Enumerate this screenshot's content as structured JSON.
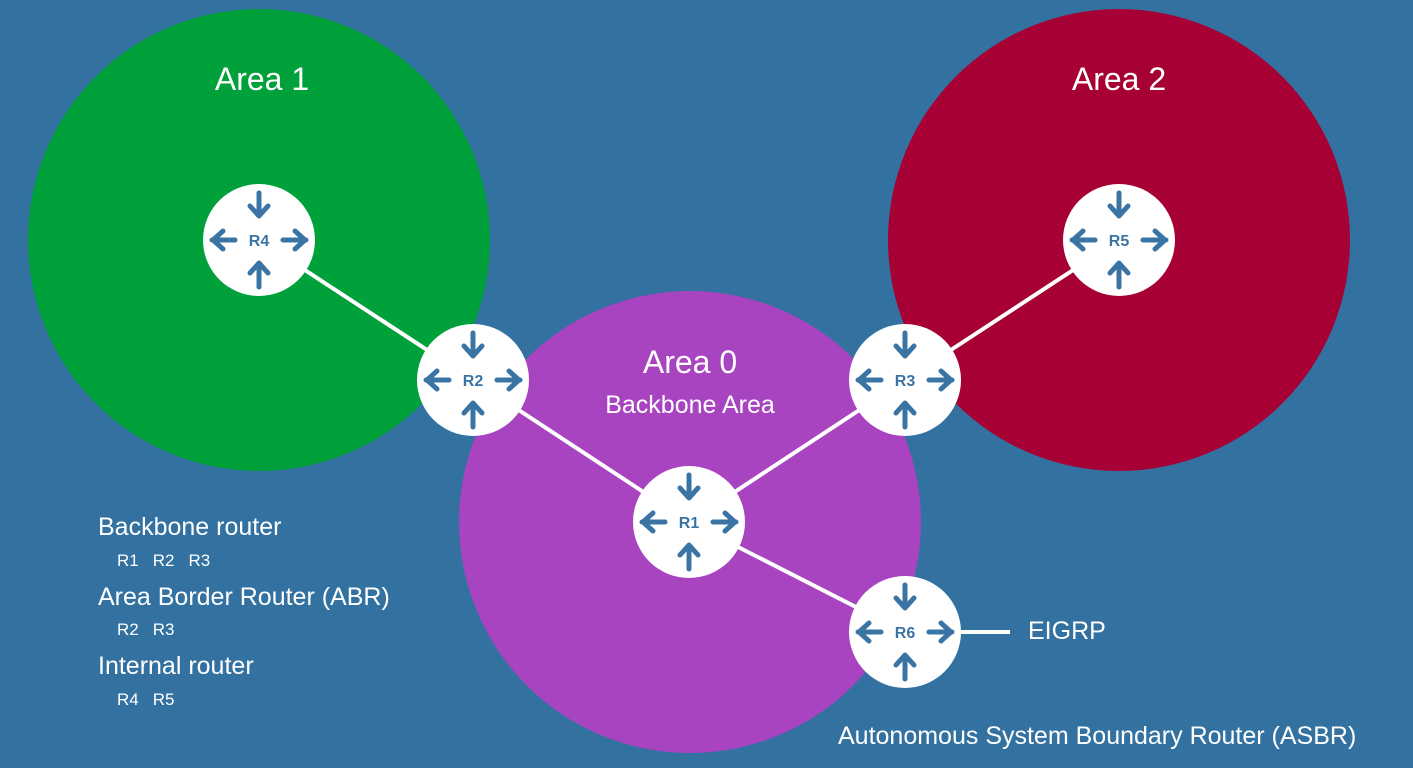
{
  "areas": {
    "area1": {
      "title": "Area 1",
      "color": "#00a03a"
    },
    "area2": {
      "title": "Area 2",
      "color": "#a60035"
    },
    "area0": {
      "title": "Area 0",
      "subtitle": "Backbone Area",
      "color": "#a844c0"
    }
  },
  "routers": [
    {
      "id": "r4",
      "label": "R4"
    },
    {
      "id": "r5",
      "label": "R5"
    },
    {
      "id": "r2",
      "label": "R2"
    },
    {
      "id": "r3",
      "label": "R3"
    },
    {
      "id": "r1",
      "label": "R1"
    },
    {
      "id": "r6",
      "label": "R6"
    }
  ],
  "links": [
    [
      "r4",
      "r2"
    ],
    [
      "r2",
      "r1"
    ],
    [
      "r3",
      "r1"
    ],
    [
      "r5",
      "r3"
    ],
    [
      "r1",
      "r6"
    ]
  ],
  "legend": {
    "backbone": {
      "heading": "Backbone router",
      "items": [
        "R1",
        "R2",
        "R3"
      ]
    },
    "abr": {
      "heading": "Area Border Router (ABR)",
      "items": [
        "R2",
        "R3"
      ]
    },
    "internal": {
      "heading": "Internal router",
      "items": [
        "R4",
        "R5"
      ]
    }
  },
  "external": {
    "label": "EIGRP"
  },
  "asbr_label": "Autonomous System Boundary Router (ASBR)",
  "colors": {
    "background": "#3371a1",
    "router_fill": "#ffffff",
    "router_icon": "#3a74a4",
    "link": "#ffffff"
  }
}
